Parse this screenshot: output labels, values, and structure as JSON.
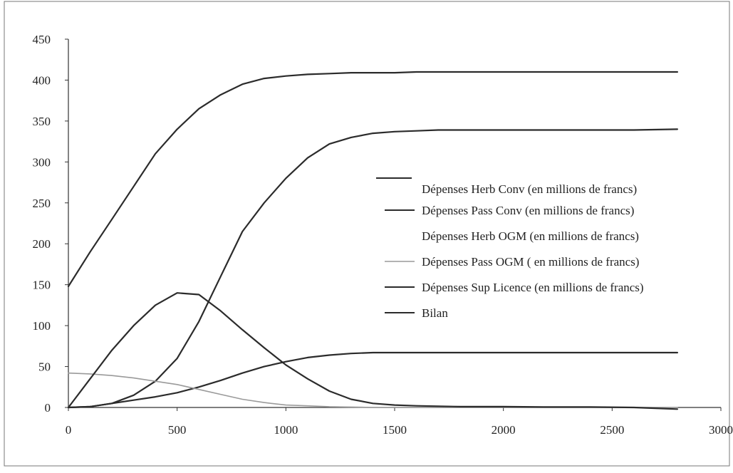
{
  "chart_data": {
    "type": "line",
    "title": "",
    "xlabel": "",
    "ylabel": "",
    "xlim": [
      0,
      3000
    ],
    "ylim": [
      0,
      450
    ],
    "x_ticks": [
      "0",
      "500",
      "1000",
      "1500",
      "2000",
      "2500",
      "3000"
    ],
    "y_ticks": [
      "0",
      "50",
      "100",
      "150",
      "200",
      "250",
      "300",
      "350",
      "400",
      "450"
    ],
    "grid": false,
    "legend_position": "right",
    "series": [
      {
        "name": "Dépenses Herb Conv (en millions de francs)",
        "color": "#2b2b2b",
        "visible": false,
        "x": [],
        "y": []
      },
      {
        "name": "Dépenses Pass Conv (en millions de francs)",
        "color": "#2b2b2b",
        "x": [
          0,
          100,
          200,
          300,
          400,
          500,
          600,
          700,
          800,
          900,
          1000,
          1100,
          1200,
          1300,
          1400,
          1500,
          1600,
          1700,
          1800,
          2000,
          2200,
          2400,
          2600,
          2800
        ],
        "y": [
          0,
          1,
          5,
          9,
          13,
          18,
          25,
          33,
          42,
          50,
          56,
          61,
          64,
          66,
          67,
          67,
          67,
          67,
          67,
          67,
          67,
          67,
          67,
          67
        ]
      },
      {
        "name": "Dépenses Herb OGM (en millions de francs)",
        "color": "#2b2b2b",
        "x": [
          0,
          100,
          200,
          300,
          400,
          500,
          600,
          700,
          800,
          900,
          1000,
          1100,
          1200,
          1300,
          1400,
          1500,
          1600,
          1700,
          1800,
          2000,
          2200,
          2400,
          2600,
          2800
        ],
        "y": [
          0,
          1,
          5,
          15,
          32,
          60,
          105,
          160,
          215,
          250,
          280,
          305,
          322,
          330,
          335,
          337,
          338,
          339,
          339,
          339,
          339,
          339,
          339,
          340
        ]
      },
      {
        "name": "Dépenses Pass OGM ( en millions de francs)",
        "color": "#9a9a9a",
        "x": [
          0,
          100,
          200,
          300,
          400,
          500,
          600,
          700,
          800,
          900,
          1000,
          1100,
          1200,
          1300,
          1400,
          1600,
          1800,
          2000,
          2400,
          2800
        ],
        "y": [
          42,
          41,
          39,
          36,
          32,
          28,
          22,
          16,
          10,
          6,
          3,
          2,
          1,
          0.5,
          0,
          0,
          0,
          0,
          0,
          0
        ]
      },
      {
        "name": "Dépenses Sup Licence (en millions de francs)",
        "color": "#2b2b2b",
        "x": [
          0,
          100,
          200,
          300,
          400,
          500,
          600,
          700,
          800,
          900,
          1000,
          1100,
          1200,
          1300,
          1400,
          1500,
          1600,
          1800,
          2000,
          2200,
          2400,
          2600,
          2800
        ],
        "y": [
          0,
          35,
          70,
          100,
          125,
          140,
          138,
          118,
          95,
          73,
          52,
          35,
          20,
          10,
          5,
          3,
          2,
          1,
          1,
          0.5,
          0.5,
          0,
          -2
        ]
      },
      {
        "name": "Bilan",
        "color": "#2b2b2b",
        "x": [
          0,
          100,
          200,
          300,
          400,
          500,
          600,
          700,
          800,
          900,
          1000,
          1100,
          1200,
          1300,
          1400,
          1500,
          1600,
          1800,
          2000,
          2200,
          2400,
          2600,
          2800
        ],
        "y": [
          148,
          190,
          230,
          270,
          310,
          340,
          365,
          382,
          395,
          402,
          405,
          407,
          408,
          409,
          409,
          409,
          410,
          410,
          410,
          410,
          410,
          410,
          410
        ]
      }
    ]
  }
}
